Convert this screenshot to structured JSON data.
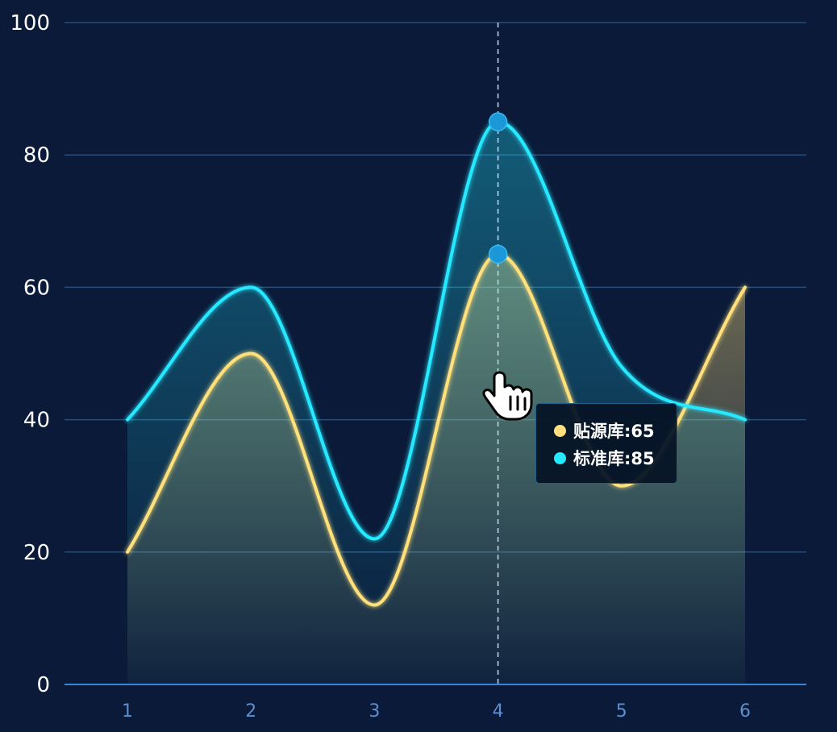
{
  "chart_data": {
    "type": "area",
    "categories": [
      "1",
      "2",
      "3",
      "4",
      "5",
      "6"
    ],
    "ylim": [
      0,
      100
    ],
    "yticks": [
      "0",
      "20",
      "40",
      "60",
      "80",
      "100"
    ],
    "grid": true,
    "smooth": true,
    "series": [
      {
        "name": "贴源库",
        "values": [
          20,
          50,
          12,
          65,
          30,
          60
        ],
        "color": "#ffe07a"
      },
      {
        "name": "标准库",
        "values": [
          40,
          60,
          22,
          85,
          48,
          40
        ],
        "color": "#26e8ff"
      }
    ],
    "highlight_category": "4",
    "tooltip": {
      "rows": [
        {
          "text": "贴源库:65",
          "color": "#ffe07a"
        },
        {
          "text": "标准库:85",
          "color": "#26e8ff"
        }
      ]
    },
    "colors": {
      "background": "#0a1a38",
      "grid": "#2a4e78",
      "axis": "#3a86d6",
      "marker": "#1c97d8"
    }
  }
}
